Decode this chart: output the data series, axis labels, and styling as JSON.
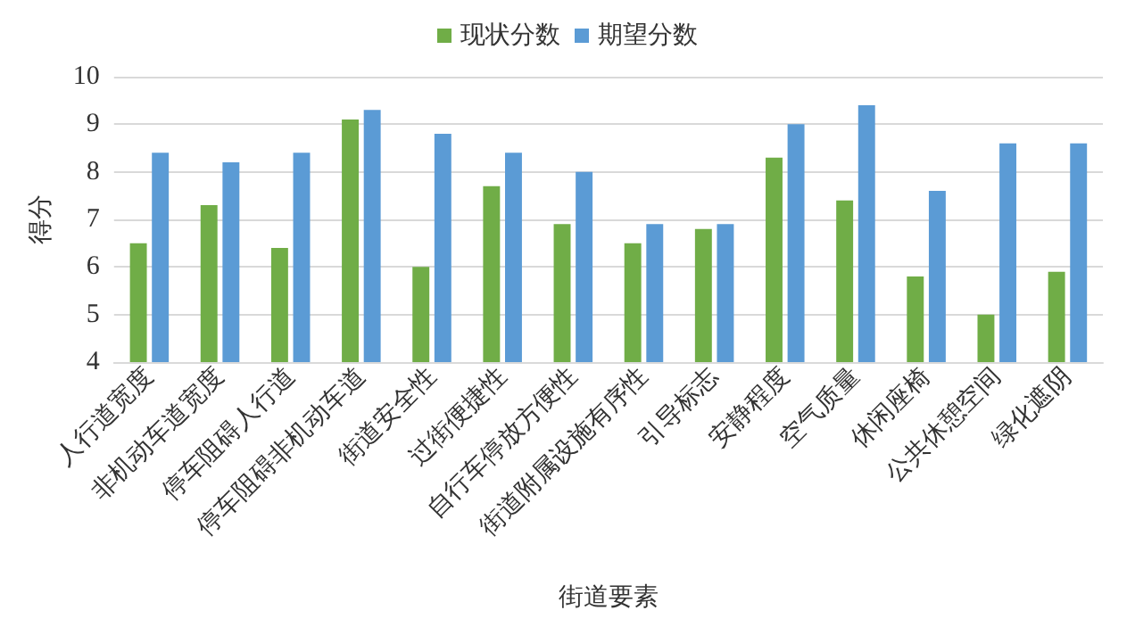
{
  "chart_data": {
    "type": "bar",
    "xlabel": "街道要素",
    "ylabel": "得分",
    "categories": [
      "人行道宽度",
      "非机动车道宽度",
      "停车阻碍人行道",
      "停车阻碍非机动车道",
      "街道安全性",
      "过街便捷性",
      "自行车停放方便性",
      "街道附属设施有序性",
      "引导标志",
      "安静程度",
      "空气质量",
      "休闲座椅",
      "公共休憩空间",
      "绿化遮阴"
    ],
    "series": [
      {
        "name": "现状分数",
        "color": "#70ad47",
        "values": [
          6.5,
          7.3,
          6.4,
          9.1,
          6.0,
          7.7,
          6.9,
          6.5,
          6.8,
          8.3,
          7.4,
          5.8,
          5.0,
          5.9
        ]
      },
      {
        "name": "期望分数",
        "color": "#5b9bd5",
        "values": [
          8.4,
          8.2,
          8.4,
          9.3,
          8.8,
          8.4,
          8.0,
          6.9,
          6.9,
          9.0,
          9.4,
          7.6,
          8.6,
          8.6
        ]
      }
    ],
    "ylim": [
      4,
      10
    ],
    "yticks": [
      4,
      5,
      6,
      7,
      8,
      9,
      10
    ],
    "grid": "y",
    "legend": "top"
  }
}
